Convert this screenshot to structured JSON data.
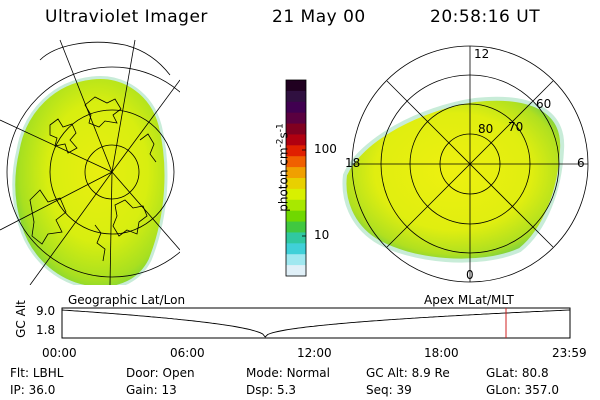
{
  "header": {
    "instrument": "Ultraviolet Imager",
    "date": "21 May 00",
    "time": "20:58:16 UT"
  },
  "colorbar": {
    "label": "photon cm",
    "label_sup1": "-2",
    "label_mid": "s",
    "label_sup2": "-1",
    "ticks": [
      "100",
      "10"
    ],
    "colors": [
      "#200020",
      "#301040",
      "#400050",
      "#5a0040",
      "#800020",
      "#b00010",
      "#e02000",
      "#f06000",
      "#f0a000",
      "#e8d000",
      "#d8f000",
      "#a8e800",
      "#70d800",
      "#40c840",
      "#30c8a0",
      "#40d0d8",
      "#a0e8f0",
      "#e0f0f8"
    ]
  },
  "polar": {
    "lat_labels": [
      "80",
      "70",
      "60"
    ],
    "mlt_labels": [
      "12",
      "18",
      "6",
      "0"
    ]
  },
  "timeline": {
    "left_label": "Geographic Lat/Lon",
    "right_label": "Apex MLat/MLT",
    "axis_title": "GC Alt",
    "y_max": "9.0",
    "y_min": "1.8",
    "ticks": [
      "00:00",
      "06:00",
      "12:00",
      "18:00",
      "23:59"
    ],
    "current_time_fraction": 0.874,
    "minimum_fraction": 0.4,
    "marker_color": "#d02020"
  },
  "info": {
    "row1": [
      {
        "label": "Flt:",
        "value": "LBHL"
      },
      {
        "label": "Door:",
        "value": "Open"
      },
      {
        "label": "Mode:",
        "value": "Normal"
      },
      {
        "label": "GC Alt:",
        "value": "8.9 Re"
      },
      {
        "label": "GLat:",
        "value": "80.8"
      }
    ],
    "row2": [
      {
        "label": "IP:",
        "value": "36.0"
      },
      {
        "label": "Gain:",
        "value": "13"
      },
      {
        "label": "Dsp:",
        "value": "5.3"
      },
      {
        "label": "Seq:",
        "value": "39"
      },
      {
        "label": "GLon:",
        "value": "357.0"
      }
    ]
  }
}
